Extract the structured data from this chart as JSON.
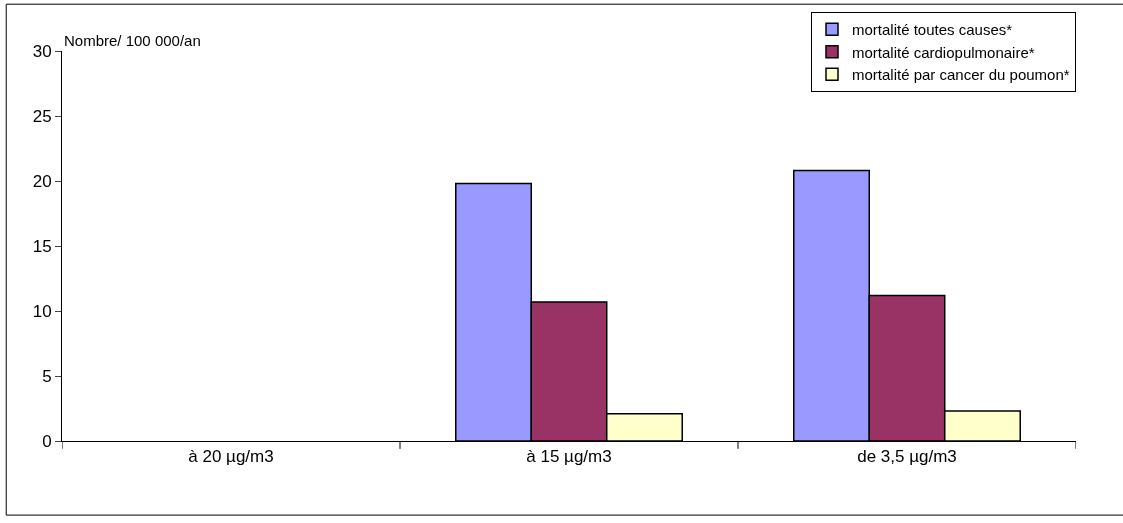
{
  "chart_data": {
    "type": "bar",
    "ylabel": "Nombre/ 100 000/an",
    "categories": [
      "à 20 µg/m3",
      "à 15 µg/m3",
      "de 3,5 µg/m3"
    ],
    "series": [
      {
        "name": "mortalité toutes causes*",
        "color": "#9999ff",
        "values": [
          null,
          19.8,
          20.8
        ]
      },
      {
        "name": "mortalité cardiopulmonaire*",
        "color": "#993366",
        "values": [
          null,
          10.7,
          11.2
        ]
      },
      {
        "name": "mortalité par cancer du poumon*",
        "color": "#ffffcc",
        "values": [
          null,
          2.1,
          2.3
        ]
      }
    ],
    "ylim": [
      0,
      30
    ],
    "yticks": [
      0,
      5,
      10,
      15,
      20,
      25,
      30
    ],
    "grid": false,
    "legend": "top right"
  }
}
